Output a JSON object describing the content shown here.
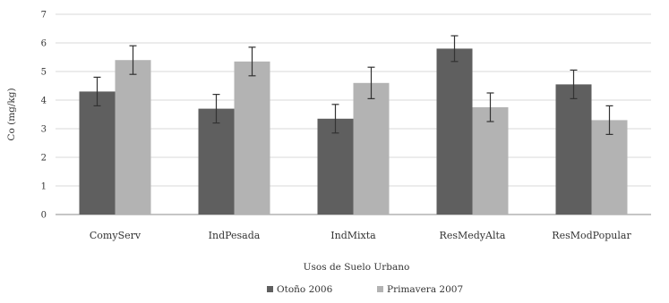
{
  "chart_data": {
    "type": "bar",
    "title": "",
    "xlabel": "Usos de Suelo Urbano",
    "ylabel": "Co (mg/kg)",
    "ylim": [
      0,
      7
    ],
    "yticks": [
      "0",
      "1",
      "2",
      "3",
      "4",
      "5",
      "6",
      "7"
    ],
    "grid": true,
    "legend_position": "bottom",
    "categories": [
      "ComyServ",
      "IndPesada",
      "IndMixta",
      "ResMedyAlta",
      "ResModPopular"
    ],
    "series": [
      {
        "name": "Otoño 2006",
        "color": "#5f5f5f",
        "values": [
          4.3,
          3.7,
          3.35,
          5.8,
          4.55
        ],
        "error": [
          0.5,
          0.5,
          0.5,
          0.45,
          0.5
        ]
      },
      {
        "name": "Primavera 2007",
        "color": "#b3b3b3",
        "values": [
          5.4,
          5.35,
          4.6,
          3.75,
          3.3
        ],
        "error": [
          0.5,
          0.5,
          0.55,
          0.5,
          0.5
        ]
      }
    ]
  }
}
